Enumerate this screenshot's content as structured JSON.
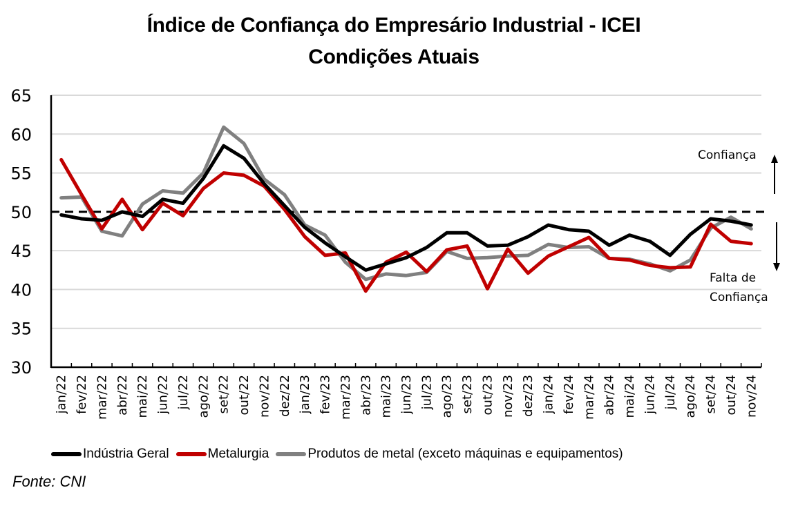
{
  "chart_data": {
    "type": "line",
    "title": "Índice de Confiança do Empresário Industrial - ICEI",
    "subtitle": "Condições Atuais",
    "xlabel": "",
    "ylabel": "",
    "ylim": [
      30,
      65
    ],
    "yticks": [
      30,
      35,
      40,
      45,
      50,
      55,
      60,
      65
    ],
    "grid": true,
    "reference_line": {
      "value": 50,
      "style": "dashed"
    },
    "legend_position": "bottom",
    "categories": [
      "jan/22",
      "fev/22",
      "mar/22",
      "abr/22",
      "mai/22",
      "jun/22",
      "jul/22",
      "ago/22",
      "set/22",
      "out/22",
      "nov/22",
      "dez/22",
      "jan/23",
      "fev/23",
      "mar/23",
      "abr/23",
      "mai/23",
      "jun/23",
      "jul/23",
      "ago/23",
      "set/23",
      "out/23",
      "nov/23",
      "dez/23",
      "jan/24",
      "fev/24",
      "mar/24",
      "abr/24",
      "mai/24",
      "jun/24",
      "jul/24",
      "ago/24",
      "set/24",
      "out/24",
      "nov/24"
    ],
    "series": [
      {
        "name": "Produtos de metal (exceto máquinas e equipamentos)",
        "color": "#808080",
        "values": [
          51.8,
          51.9,
          47.5,
          46.9,
          51.0,
          52.7,
          52.4,
          55.0,
          60.9,
          58.8,
          54.2,
          52.2,
          48.3,
          47.0,
          43.5,
          41.3,
          42.0,
          41.8,
          42.2,
          44.9,
          44.0,
          44.1,
          44.3,
          44.4,
          45.8,
          45.4,
          45.5,
          44.0,
          43.9,
          43.3,
          42.4,
          43.8,
          47.9,
          49.3,
          47.8
        ]
      },
      {
        "name": "Metalurgia",
        "color": "#c00000",
        "values": [
          56.7,
          52.2,
          47.8,
          51.6,
          47.7,
          51.1,
          49.5,
          53.0,
          55.0,
          54.7,
          53.3,
          50.3,
          46.8,
          44.4,
          44.7,
          39.8,
          43.5,
          44.8,
          42.3,
          45.1,
          45.6,
          40.1,
          45.2,
          42.1,
          44.3,
          45.5,
          46.7,
          44.0,
          43.8,
          43.1,
          42.8,
          42.9,
          48.4,
          46.2,
          45.9
        ]
      },
      {
        "name": "Indústria Geral",
        "color": "#000000",
        "values": [
          49.6,
          49.1,
          48.9,
          50.0,
          49.4,
          51.6,
          51.1,
          54.3,
          58.5,
          56.9,
          53.6,
          50.8,
          48.0,
          46.0,
          44.2,
          42.5,
          43.3,
          44.1,
          45.4,
          47.3,
          47.3,
          45.6,
          45.7,
          46.8,
          48.3,
          47.7,
          47.5,
          45.7,
          47.0,
          46.2,
          44.4,
          47.1,
          49.1,
          48.8,
          48.3
        ]
      }
    ],
    "annotations": {
      "above": "Confiança",
      "below_line1": "Falta de",
      "below_line2": "Confiança"
    }
  },
  "legend": [
    {
      "label": "Indústria Geral",
      "color": "#000000"
    },
    {
      "label": "Metalurgia",
      "color": "#c00000"
    },
    {
      "label": "Produtos de metal (exceto máquinas e equipamentos)",
      "color": "#808080"
    }
  ],
  "source": "Fonte: CNI"
}
